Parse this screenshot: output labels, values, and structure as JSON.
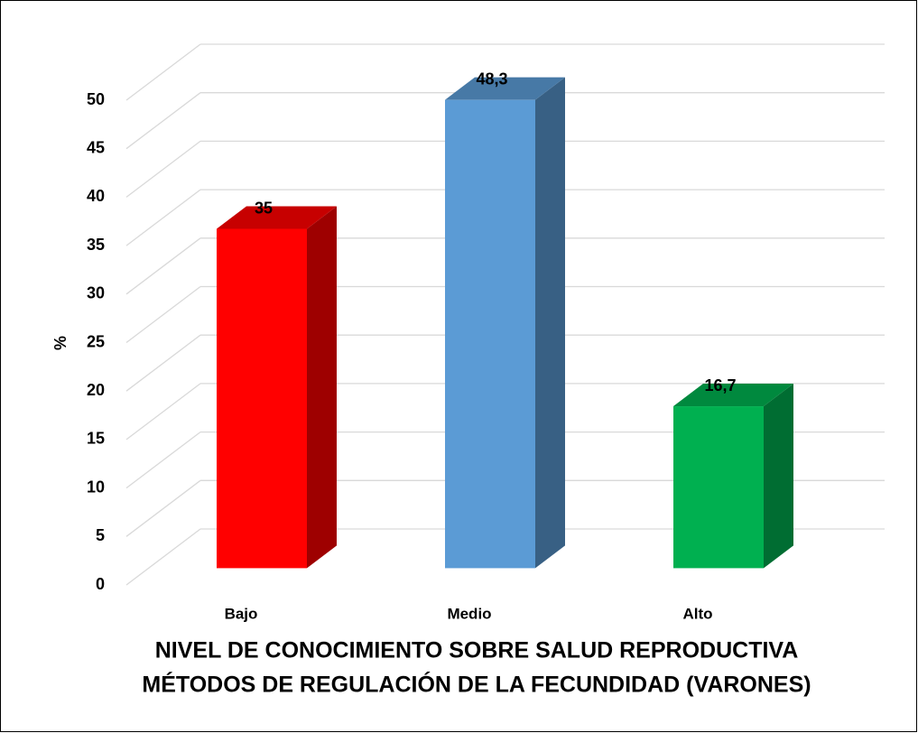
{
  "chart_data": {
    "type": "bar3d",
    "title": [
      "NIVEL DE CONOCIMIENTO SOBRE SALUD  REPRODUCTIVA",
      "MÉTODOS DE REGULACIÓN DE LA FECUNDIDAD (VARONES)"
    ],
    "y_label": "%",
    "categories": [
      "Bajo",
      "Medio",
      "Alto"
    ],
    "values": [
      35,
      48.3,
      16.7
    ],
    "value_labels": [
      "35",
      "48,3",
      "16,7"
    ],
    "colors": [
      "#ff0000",
      "#5b9bd5",
      "#00b050"
    ],
    "ylim": [
      0,
      50
    ],
    "yticks": [
      0,
      5,
      10,
      15,
      20,
      25,
      30,
      35,
      40,
      45,
      50
    ],
    "grid": true
  }
}
